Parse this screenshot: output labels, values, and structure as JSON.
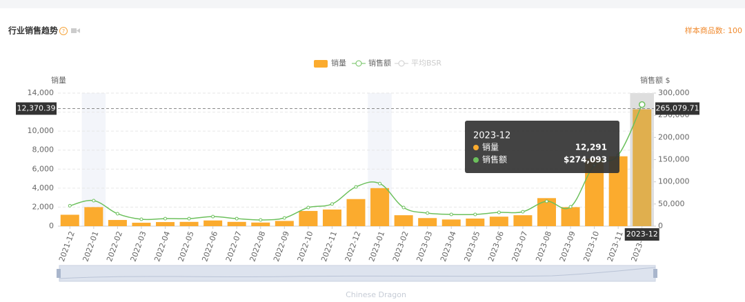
{
  "chart_data": {
    "type": "bar_line",
    "title": "行业销售趋势",
    "sample_count": "样本商品数: 100",
    "y_axis_label": "销量",
    "y2_axis_label": "销售额 $",
    "watermark": "Chinese Dragon",
    "inactive_legend": "平均BSR",
    "categories": [
      "2021-12",
      "2022-01",
      "2022-02",
      "2022-03",
      "2022-04",
      "2022-05",
      "2022-06",
      "2022-07",
      "2022-08",
      "2022-09",
      "2022-10",
      "2022-11",
      "2022-12",
      "2023-01",
      "2023-02",
      "2023-03",
      "2023-04",
      "2023-05",
      "2023-06",
      "2023-07",
      "2023-08",
      "2023-09",
      "2023-10",
      "2023-11",
      "2023-12"
    ],
    "series": [
      {
        "name": "销量",
        "type": "bar",
        "color": "#fbab2e",
        "values": [
          1200,
          2000,
          650,
          360,
          430,
          450,
          600,
          450,
          380,
          550,
          1600,
          1750,
          2850,
          4000,
          1150,
          850,
          700,
          800,
          1000,
          1150,
          2950,
          2000,
          7100,
          7350,
          12291
        ]
      },
      {
        "name": "销售额",
        "type": "line",
        "axis": "y2",
        "color": "#6cc05c",
        "values": [
          46000,
          57500,
          28000,
          15500,
          17000,
          17000,
          21500,
          17000,
          14000,
          18500,
          42000,
          50000,
          88500,
          96000,
          42000,
          29500,
          26500,
          26500,
          31000,
          32500,
          56000,
          43500,
          137000,
          160000,
          274093
        ]
      }
    ],
    "ylim": [
      0,
      14000
    ],
    "yticks": [
      0,
      {
        "value": 2000,
        "label": "2,000"
      },
      {
        "value": 4000,
        "label": "4,000"
      },
      {
        "value": 6000,
        "label": "6,000"
      },
      {
        "value": 8000,
        "label": "8,000"
      },
      {
        "value": 10000,
        "label": "10,000"
      },
      {
        "value": 12000,
        "label": "12,000"
      },
      {
        "value": 14000,
        "label": "14,000"
      }
    ],
    "y2lim": [
      0,
      300000
    ],
    "y2ticks": [
      0,
      {
        "value": 50000,
        "label": "50,000"
      },
      {
        "value": 100000,
        "label": "100,000"
      },
      {
        "value": 150000,
        "label": "150,000"
      },
      {
        "value": 200000,
        "label": "200,000"
      },
      {
        "value": 250000,
        "label": "250,000"
      },
      {
        "value": 300000,
        "label": "300,000"
      }
    ],
    "grid": true,
    "legend": "top",
    "crosshair": {
      "y": {
        "value": 12370.39,
        "label": "12,370.39"
      },
      "y2": {
        "value": 265079.71,
        "label": "265,079.71"
      }
    },
    "tooltip": {
      "title": "2023-12",
      "items": [
        {
          "label": "销量",
          "value": "12,291"
        },
        {
          "label": "销售额",
          "value": "$274,093"
        }
      ]
    }
  }
}
